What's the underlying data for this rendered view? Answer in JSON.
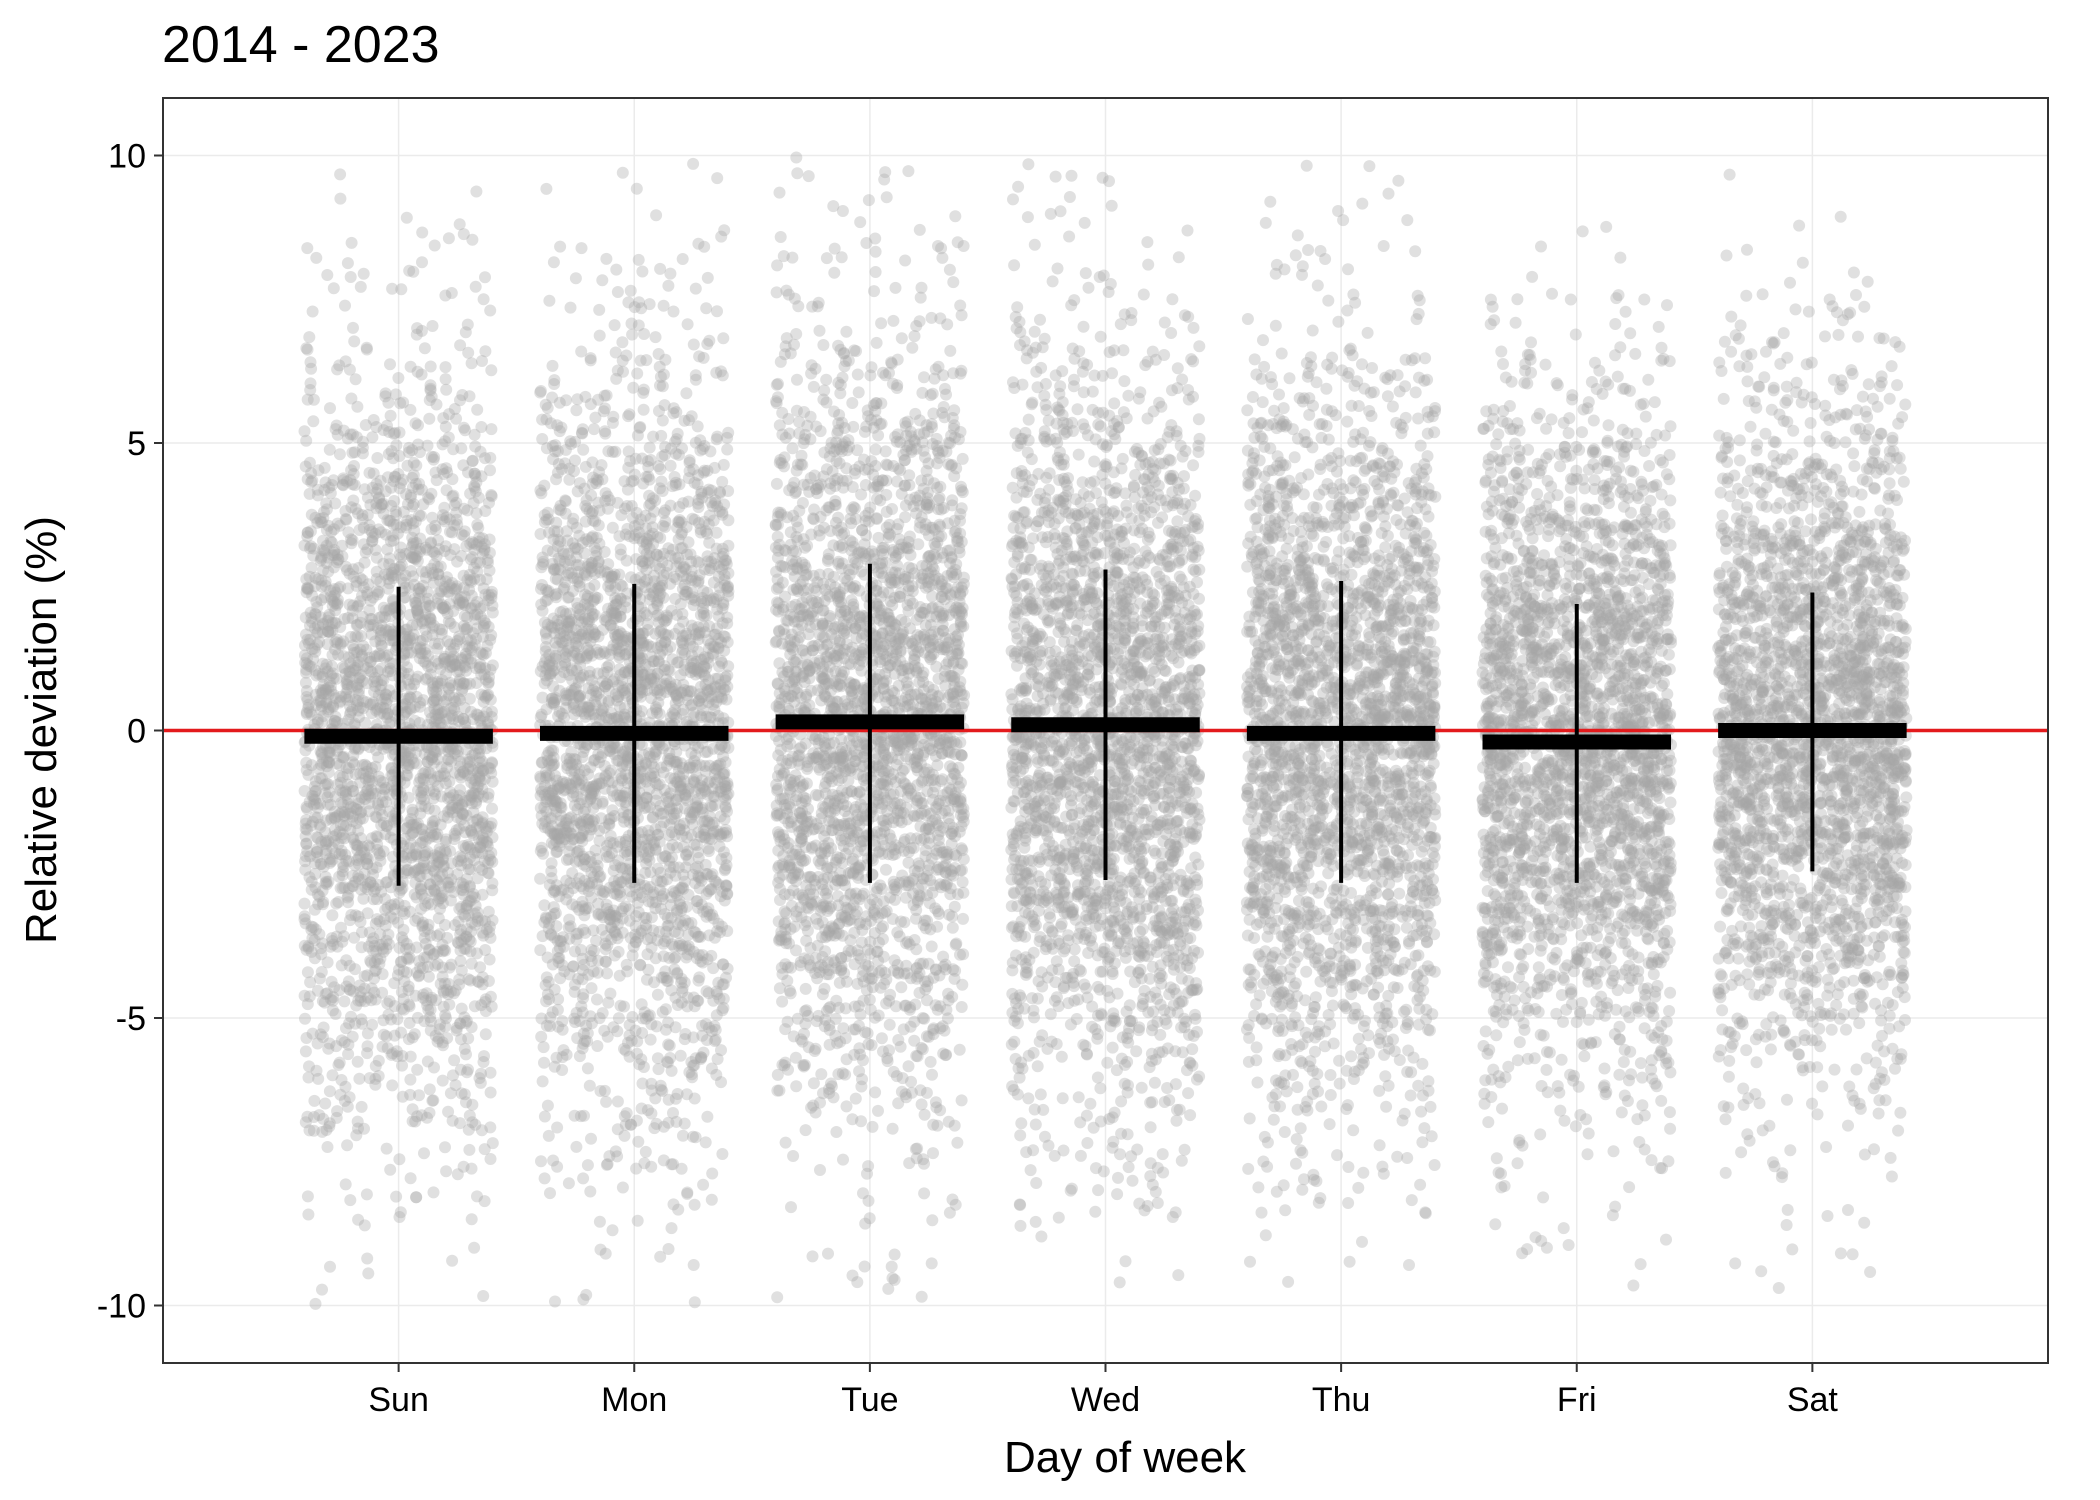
{
  "chart_data": {
    "type": "scatter",
    "title": "2014 - 2023",
    "xlabel": "Day of week",
    "ylabel": "Relative deviation (%)",
    "categories": [
      "Sun",
      "Mon",
      "Tue",
      "Wed",
      "Thu",
      "Fri",
      "Sat"
    ],
    "ylim": [
      -11,
      11
    ],
    "yticks": [
      -10,
      -5,
      0,
      5,
      10
    ],
    "ytick_labels": [
      "-10",
      "-5",
      "0",
      "5",
      "10"
    ],
    "grid": true,
    "reference_line": {
      "y": 0,
      "color": "#e31a1c"
    },
    "point_color": "#a6a6a6",
    "summary_color": "#000000",
    "summary": [
      {
        "category": "Sun",
        "mean": -0.1,
        "lower": -2.7,
        "upper": 2.5
      },
      {
        "category": "Mon",
        "mean": -0.05,
        "lower": -2.65,
        "upper": 2.55
      },
      {
        "category": "Tue",
        "mean": 0.15,
        "lower": -2.65,
        "upper": 2.9
      },
      {
        "category": "Wed",
        "mean": 0.1,
        "lower": -2.6,
        "upper": 2.8
      },
      {
        "category": "Thu",
        "mean": -0.05,
        "lower": -2.65,
        "upper": 2.6
      },
      {
        "category": "Fri",
        "mean": -0.2,
        "lower": -2.65,
        "upper": 2.2
      },
      {
        "category": "Sat",
        "mean": 0.0,
        "lower": -2.45,
        "upper": 2.4
      }
    ]
  }
}
